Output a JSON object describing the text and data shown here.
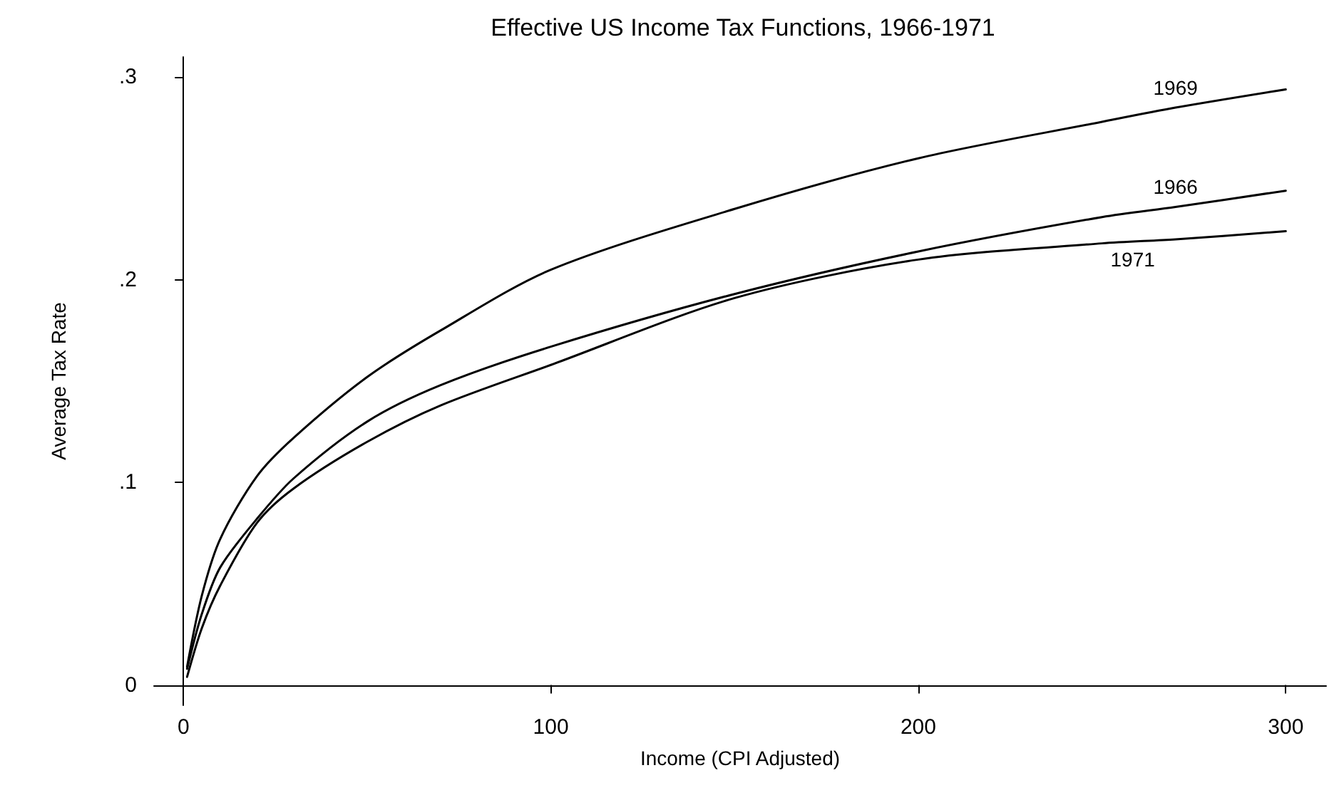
{
  "chart_data": {
    "type": "line",
    "title": "Effective US Income Tax Functions, 1966-1971",
    "xlabel": "Income (CPI Adjusted)",
    "ylabel": "Average Tax Rate",
    "x": [
      1,
      5,
      10,
      20,
      30,
      50,
      70,
      100,
      150,
      200,
      250,
      270,
      300
    ],
    "series": [
      {
        "name": "1969",
        "color": "#000000",
        "values": [
          0.009,
          0.044,
          0.072,
          0.103,
          0.122,
          0.152,
          0.175,
          0.205,
          0.235,
          0.26,
          0.278,
          0.285,
          0.294
        ]
      },
      {
        "name": "1966",
        "color": "#000000",
        "values": [
          0.008,
          0.035,
          0.058,
          0.082,
          0.102,
          0.13,
          0.148,
          0.167,
          0.193,
          0.214,
          0.231,
          0.236,
          0.244
        ]
      },
      {
        "name": "1971",
        "color": "#000000",
        "values": [
          0.004,
          0.028,
          0.049,
          0.08,
          0.097,
          0.12,
          0.138,
          0.158,
          0.191,
          0.21,
          0.218,
          0.22,
          0.224
        ]
      }
    ],
    "xlim": [
      -8,
      311
    ],
    "xticks": [
      0,
      100,
      200,
      300
    ],
    "ylim": [
      -0.01,
      0.31
    ],
    "yticks": [
      {
        "value": 0,
        "label": "0"
      },
      {
        "value": 0.1,
        "label": ".1"
      },
      {
        "value": 0.2,
        "label": ".2"
      },
      {
        "value": 0.3,
        "label": ".3"
      }
    ],
    "grid": false,
    "legend": false,
    "marker": "none",
    "line_style": "solid"
  }
}
